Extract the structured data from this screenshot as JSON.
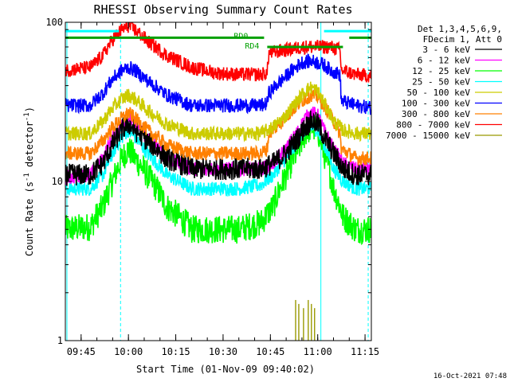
{
  "chart_data": {
    "type": "line",
    "title": "RHESSI Observing Summary Count Rates",
    "xlabel": "Start Time (01-Nov-09 09:40:02)",
    "ylabel_main": "Count Rate (s",
    "ylabel_sup1": "-1",
    "ylabel_mid": " detector",
    "ylabel_sup2": "-1",
    "ylabel_end": ")",
    "x_axis_unit": "minutes after 09:40:02",
    "xlim": [
      0,
      97
    ],
    "ylim": [
      1,
      100
    ],
    "y_scale": "log",
    "grid": false,
    "x_ticks": [
      {
        "label": "09:45",
        "value": 5
      },
      {
        "label": "10:00",
        "value": 20
      },
      {
        "label": "10:15",
        "value": 35
      },
      {
        "label": "10:30",
        "value": 50
      },
      {
        "label": "10:45",
        "value": 65
      },
      {
        "label": "11:00",
        "value": 80
      },
      {
        "label": "11:15",
        "value": 95
      }
    ],
    "y_ticks": [
      {
        "label": "1",
        "value": 1
      },
      {
        "label": "10",
        "value": 10
      },
      {
        "label": "100",
        "value": 100
      }
    ],
    "legend_header": [
      "Det 1,3,4,5,6,9,",
      "FDecim 1, Att 0"
    ],
    "legend_position": "right",
    "series": [
      {
        "name": "3 - 6 keV",
        "color": "#000000",
        "x": [
          0,
          8,
          12,
          15,
          18,
          20,
          22,
          26,
          32,
          40,
          48,
          55,
          62,
          66,
          70,
          74,
          76,
          78,
          80,
          82,
          85,
          88,
          92,
          97
        ],
        "y": [
          11,
          11,
          13,
          17,
          21,
          23,
          21,
          18,
          14,
          12,
          12,
          12,
          12,
          13,
          15,
          19,
          22,
          24,
          23,
          19,
          15,
          12,
          11,
          11
        ]
      },
      {
        "name": "6 - 12 keV",
        "color": "#ff00ff",
        "x": [
          0,
          8,
          12,
          15,
          18,
          20,
          22,
          26,
          32,
          40,
          48,
          55,
          62,
          66,
          70,
          74,
          76,
          78,
          80,
          82,
          85,
          88,
          92,
          97
        ],
        "y": [
          10.5,
          11,
          14,
          19,
          23,
          25,
          23,
          19,
          14,
          12,
          12,
          12,
          12,
          13,
          16,
          21,
          25,
          27,
          26,
          21,
          16,
          13,
          12,
          12
        ]
      },
      {
        "name": "12 - 25 keV",
        "color": "#00ff00",
        "x": [
          0,
          8,
          12,
          15,
          18,
          20,
          22,
          26,
          32,
          40,
          48,
          55,
          62,
          66,
          70,
          74,
          76,
          78,
          80,
          82,
          85,
          88,
          92,
          97
        ],
        "y": [
          5,
          5.2,
          7,
          10,
          14,
          16,
          14,
          11,
          7,
          5,
          5,
          5,
          5.5,
          7,
          11,
          16,
          20,
          22,
          21,
          15,
          9,
          6,
          5,
          5
        ]
      },
      {
        "name": "25 - 50 keV",
        "color": "#00ffff",
        "x": [
          0,
          8,
          12,
          15,
          18,
          20,
          22,
          26,
          32,
          40,
          48,
          55,
          62,
          66,
          70,
          74,
          76,
          78,
          80,
          82,
          85,
          88,
          92,
          97
        ],
        "y": [
          9,
          9,
          11,
          15,
          19,
          21,
          19,
          15,
          11,
          9,
          9,
          9,
          9.5,
          11,
          14,
          18,
          21,
          22,
          21,
          17,
          12,
          10,
          9,
          9
        ]
      },
      {
        "name": "50 - 100 keV",
        "color": "#cccc00",
        "x": [
          0,
          8,
          12,
          15,
          18,
          20,
          22,
          26,
          32,
          40,
          48,
          55,
          62,
          66,
          70,
          74,
          76,
          78,
          80,
          82,
          85,
          88,
          92,
          97
        ],
        "y": [
          20,
          20,
          24,
          29,
          33,
          35,
          33,
          28,
          23,
          20,
          20,
          20,
          20,
          22,
          26,
          33,
          37,
          39,
          37,
          31,
          24,
          21,
          20,
          20
        ]
      },
      {
        "name": "100 - 300 keV",
        "color": "#0000ff",
        "x": [
          0,
          8,
          12,
          15,
          18,
          20,
          22,
          26,
          32,
          40,
          48,
          55,
          62,
          64,
          64.5,
          68,
          72,
          75,
          78,
          80,
          82,
          84,
          86,
          87,
          87.5,
          92,
          97
        ],
        "y": [
          30,
          30,
          36,
          44,
          50,
          52,
          50,
          43,
          35,
          30,
          30,
          30,
          30,
          31,
          36,
          42,
          50,
          56,
          57,
          56,
          54,
          50,
          48,
          47,
          32,
          30,
          29
        ]
      },
      {
        "name": "300 - 800 keV",
        "color": "#ff8000",
        "x": [
          0,
          8,
          12,
          15,
          18,
          20,
          22,
          26,
          32,
          40,
          48,
          55,
          62,
          64,
          64.5,
          68,
          72,
          75,
          78,
          80,
          82,
          84,
          86,
          87,
          87.5,
          92,
          97
        ],
        "y": [
          15,
          15,
          18,
          22,
          25,
          27,
          25,
          21,
          17,
          15,
          15,
          15,
          15,
          16,
          20,
          23,
          28,
          32,
          35,
          34,
          30,
          26,
          22,
          20,
          16,
          14,
          14
        ]
      },
      {
        "name": "800 - 7000 keV",
        "color": "#ff0000",
        "x": [
          0,
          8,
          12,
          15,
          18,
          20,
          22,
          26,
          32,
          40,
          48,
          55,
          62,
          64,
          64.5,
          68,
          72,
          75,
          78,
          80,
          82,
          84,
          86,
          87,
          87.5,
          92,
          97
        ],
        "y": [
          50,
          52,
          62,
          78,
          90,
          95,
          90,
          76,
          62,
          52,
          48,
          47,
          47,
          48,
          64,
          66,
          68,
          70,
          70,
          70,
          70,
          70,
          68,
          67,
          50,
          47,
          46
        ]
      },
      {
        "name": "7000 - 15000 keV",
        "color": "#999900",
        "x": [
          72,
          73,
          73.5,
          74,
          75,
          75.5,
          76,
          77,
          77.5,
          78,
          78.5,
          79,
          80
        ],
        "y": [
          1,
          1.8,
          1,
          1.7,
          1,
          1.6,
          1,
          1.8,
          1,
          1.7,
          1,
          1.6,
          1
        ]
      }
    ],
    "state_bars": [
      {
        "label": "",
        "color": "#00ffff",
        "x0": 0,
        "x1": 17,
        "y": 88
      },
      {
        "label": "RD0",
        "color": "#00a000",
        "x0": 0,
        "x1": 63,
        "y": 80
      },
      {
        "label": "RD4",
        "color": "#00a000",
        "x0": 64,
        "x1": 88,
        "y": 70
      },
      {
        "label": "",
        "color": "#00ffff",
        "x0": 82,
        "x1": 97,
        "y": 88
      },
      {
        "label": "",
        "color": "#00a000",
        "x0": 90,
        "x1": 97,
        "y": 80
      }
    ],
    "vertical_lines": [
      {
        "x": 0.5,
        "style": "solid",
        "color": "#00ffff"
      },
      {
        "x": 17.5,
        "style": "dashed",
        "color": "#00ffff"
      },
      {
        "x": 81,
        "style": "solid",
        "color": "#00ffff"
      },
      {
        "x": 96,
        "style": "dashed",
        "color": "#00ffff"
      }
    ],
    "footer_date": "16-Oct-2021 07:48"
  }
}
